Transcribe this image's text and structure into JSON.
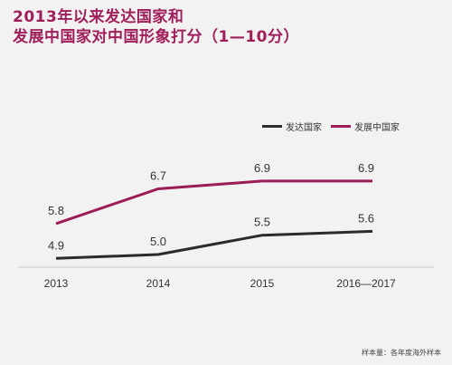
{
  "title_lines": [
    "2013年以来发达国家和",
    "发展中国家对中国形象打分（1—10分）"
  ],
  "legend": [
    {
      "label": "发达国家",
      "color": "#2b2b2b"
    },
    {
      "label": "发展中国家",
      "color": "#9c1c58"
    }
  ],
  "note": "样本量：各年度海外样本",
  "chart_data": {
    "type": "line",
    "title": "2013年以来发达国家和发展中国家对中国形象打分（1—10分）",
    "categories": [
      "2013",
      "2014",
      "2015",
      "2016—2017"
    ],
    "series": [
      {
        "name": "发达国家",
        "values": [
          4.9,
          5.0,
          5.5,
          5.6
        ],
        "color": "#2b2b2b"
      },
      {
        "name": "发展中国家",
        "values": [
          5.8,
          6.7,
          6.9,
          6.9
        ],
        "color": "#9c1c58"
      }
    ],
    "ylim": [
      3.5,
      8.0
    ],
    "grid": false,
    "legend_position": "top-right"
  }
}
